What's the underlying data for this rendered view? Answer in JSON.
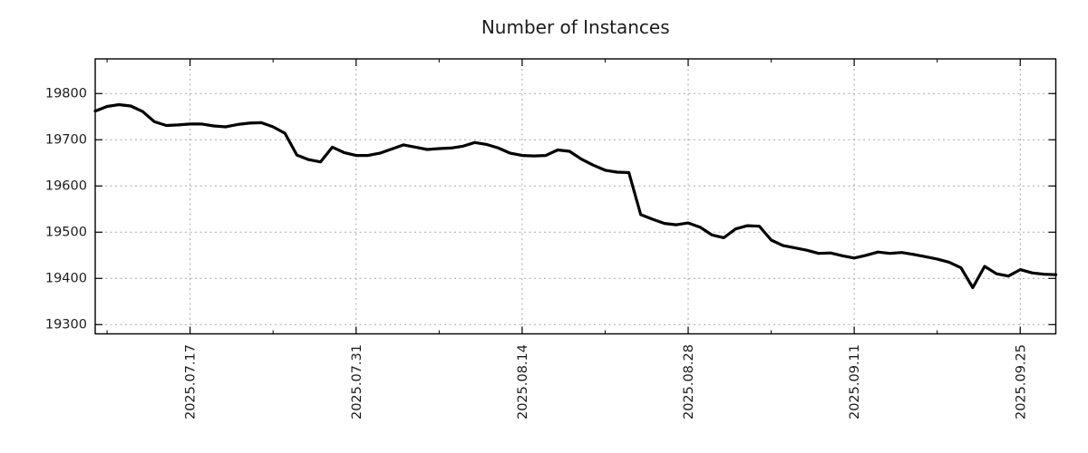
{
  "page": {
    "background": "#ffffff"
  },
  "colors": {
    "line": "#000000",
    "grid": "#a8a8a8",
    "border": "#000000",
    "tick": "#000000",
    "text": "#1c1c1c"
  },
  "chart_data": {
    "type": "line",
    "title": "Number of Instances",
    "xlabel": "",
    "ylabel": "",
    "legend": "none",
    "grid": true,
    "ylim": [
      19280,
      19875
    ],
    "y_ticks": [
      19300,
      19400,
      19500,
      19600,
      19700,
      19800
    ],
    "x_ticks": [
      {
        "label": "2025.07.17",
        "date": "2025-07-17"
      },
      {
        "label": "2025.07.31",
        "date": "2025-07-31"
      },
      {
        "label": "2025.08.14",
        "date": "2025-08-14"
      },
      {
        "label": "2025.08.28",
        "date": "2025-08-28"
      },
      {
        "label": "2025.09.11",
        "date": "2025-09-11"
      },
      {
        "label": "2025.09.25",
        "date": "2025-09-25"
      }
    ],
    "x_minor_tick_dates": [
      "2025-07-10",
      "2025-07-24",
      "2025-08-07",
      "2025-08-21",
      "2025-09-04",
      "2025-09-18"
    ],
    "x": [
      "2025-07-09",
      "2025-07-10",
      "2025-07-11",
      "2025-07-12",
      "2025-07-13",
      "2025-07-14",
      "2025-07-15",
      "2025-07-16",
      "2025-07-17",
      "2025-07-18",
      "2025-07-19",
      "2025-07-20",
      "2025-07-21",
      "2025-07-22",
      "2025-07-23",
      "2025-07-24",
      "2025-07-25",
      "2025-07-26",
      "2025-07-27",
      "2025-07-28",
      "2025-07-29",
      "2025-07-30",
      "2025-07-31",
      "2025-08-01",
      "2025-08-02",
      "2025-08-03",
      "2025-08-04",
      "2025-08-05",
      "2025-08-06",
      "2025-08-07",
      "2025-08-08",
      "2025-08-09",
      "2025-08-10",
      "2025-08-11",
      "2025-08-12",
      "2025-08-13",
      "2025-08-14",
      "2025-08-15",
      "2025-08-16",
      "2025-08-17",
      "2025-08-18",
      "2025-08-19",
      "2025-08-20",
      "2025-08-21",
      "2025-08-22",
      "2025-08-23",
      "2025-08-24",
      "2025-08-25",
      "2025-08-26",
      "2025-08-27",
      "2025-08-28",
      "2025-08-29",
      "2025-08-30",
      "2025-08-31",
      "2025-09-01",
      "2025-09-02",
      "2025-09-03",
      "2025-09-04",
      "2025-09-05",
      "2025-09-06",
      "2025-09-07",
      "2025-09-08",
      "2025-09-09",
      "2025-09-10",
      "2025-09-11",
      "2025-09-12",
      "2025-09-13",
      "2025-09-14",
      "2025-09-15",
      "2025-09-16",
      "2025-09-17",
      "2025-09-18",
      "2025-09-19",
      "2025-09-20",
      "2025-09-21",
      "2025-09-22",
      "2025-09-23",
      "2025-09-24",
      "2025-09-25",
      "2025-09-26",
      "2025-09-27",
      "2025-09-28"
    ],
    "series": [
      {
        "name": "Number of Instances",
        "values": [
          19762,
          19772,
          19776,
          19773,
          19761,
          19739,
          19731,
          19732,
          19734,
          19734,
          19730,
          19728,
          19733,
          19736,
          19737,
          19728,
          19714,
          19667,
          19657,
          19652,
          19684,
          19672,
          19666,
          19666,
          19671,
          19680,
          19689,
          19684,
          19679,
          19681,
          19682,
          19686,
          19694,
          19690,
          19682,
          19671,
          19666,
          19665,
          19666,
          19678,
          19675,
          19658,
          19645,
          19634,
          19630,
          19629,
          19538,
          19528,
          19519,
          19516,
          19520,
          19511,
          19494,
          19488,
          19507,
          19514,
          19513,
          19483,
          19471,
          19466,
          19461,
          19454,
          19455,
          19449,
          19444,
          19450,
          19457,
          19454,
          19456,
          19452,
          19447,
          19442,
          19435,
          19423,
          19380,
          19426,
          19410,
          19405,
          19419,
          19412,
          19409,
          19408
        ]
      }
    ]
  }
}
